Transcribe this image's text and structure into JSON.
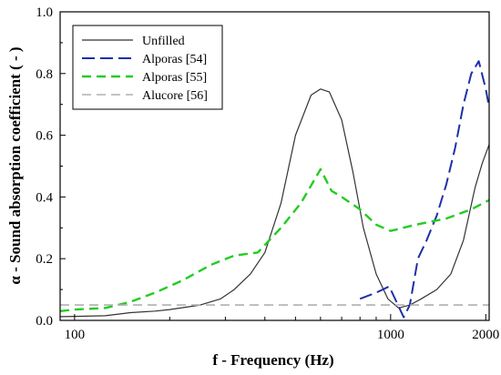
{
  "chart_data": {
    "type": "line",
    "xlabel": "f - Frequency (Hz)",
    "ylabel": "α - Sound absorption coefficient ( - )",
    "x_scale": "log",
    "xlim": [
      90,
      2050
    ],
    "ylim": [
      0,
      1.0
    ],
    "x_ticks": [
      100,
      1000,
      2000
    ],
    "x_tick_labels": [
      "100",
      "1000",
      "2000"
    ],
    "y_ticks": [
      0,
      0.2,
      0.4,
      0.6,
      0.8,
      1.0
    ],
    "y_tick_labels": [
      "0.0",
      "0.2",
      "0.4",
      "0.6",
      "0.8",
      "1.0"
    ],
    "grid": false,
    "legend_position": "top-left",
    "series": [
      {
        "name": "Unfilled",
        "color": "#333333",
        "style": "solid",
        "x": [
          90,
          100,
          125,
          150,
          180,
          200,
          250,
          290,
          320,
          360,
          400,
          450,
          500,
          560,
          600,
          640,
          700,
          760,
          820,
          900,
          980,
          1060,
          1150,
          1250,
          1400,
          1550,
          1700,
          1850,
          1950,
          2050
        ],
        "y": [
          0.012,
          0.013,
          0.015,
          0.025,
          0.03,
          0.035,
          0.05,
          0.07,
          0.1,
          0.15,
          0.22,
          0.38,
          0.6,
          0.73,
          0.75,
          0.74,
          0.65,
          0.48,
          0.3,
          0.15,
          0.07,
          0.04,
          0.05,
          0.07,
          0.1,
          0.15,
          0.26,
          0.43,
          0.51,
          0.57
        ]
      },
      {
        "name": "Alporas [54]",
        "color": "#1f2fa8",
        "style": "long-dash",
        "x": [
          800,
          900,
          990,
          1100,
          1150,
          1220,
          1300,
          1400,
          1500,
          1600,
          1700,
          1800,
          1900,
          2000,
          2050
        ],
        "y": [
          0.07,
          0.09,
          0.11,
          0.01,
          0.05,
          0.2,
          0.26,
          0.34,
          0.44,
          0.56,
          0.7,
          0.8,
          0.84,
          0.75,
          0.69
        ]
      },
      {
        "name": "Alporas [55]",
        "color": "#22cc22",
        "style": "dash",
        "x": [
          90,
          100,
          125,
          150,
          180,
          220,
          270,
          320,
          380,
          450,
          520,
          600,
          650,
          700,
          800,
          900,
          1000,
          1200,
          1500,
          1800,
          2050
        ],
        "y": [
          0.03,
          0.035,
          0.04,
          0.06,
          0.09,
          0.13,
          0.18,
          0.21,
          0.22,
          0.3,
          0.38,
          0.49,
          0.42,
          0.4,
          0.36,
          0.31,
          0.29,
          0.31,
          0.33,
          0.36,
          0.39
        ]
      },
      {
        "name": "Alucore [56]",
        "color": "#b0b0b0",
        "style": "dash",
        "x": [
          90,
          2050
        ],
        "y": [
          0.05,
          0.05
        ]
      }
    ]
  }
}
